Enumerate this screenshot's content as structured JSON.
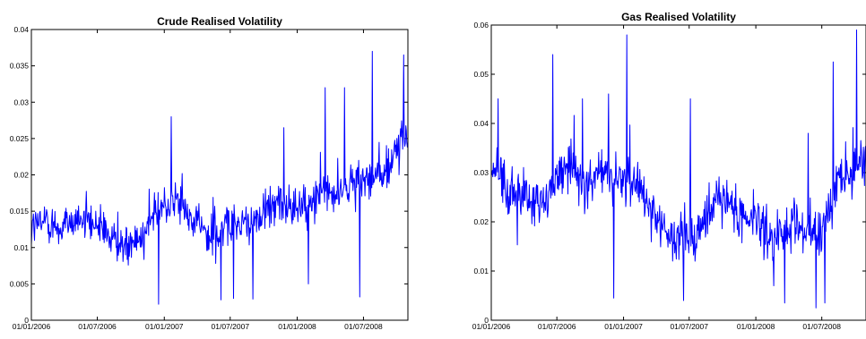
{
  "colors": {
    "series": "#0000ff",
    "axis": "#000000",
    "background": "#ffffff"
  },
  "chart_data": [
    {
      "type": "line",
      "title": "Crude Realised Volatility",
      "xlabel": "",
      "ylabel": "",
      "ylim": [
        0,
        0.04
      ],
      "yticks": [
        "0",
        "0.005",
        "0.01",
        "0.015",
        "0.02",
        "0.025",
        "0.03",
        "0.035",
        "0.04"
      ],
      "ytick_values": [
        0,
        0.005,
        0.01,
        0.015,
        0.02,
        0.025,
        0.03,
        0.035,
        0.04
      ],
      "xlim": [
        "01/01/2006",
        "31/10/2008"
      ],
      "xticks": [
        "01/01/2006",
        "01/07/2006",
        "01/01/2007",
        "01/07/2007",
        "01/01/2008",
        "01/07/2008"
      ],
      "grid": false,
      "legend": "none",
      "series": [
        {
          "values": [
            {
              "x": "2006-01-15",
              "y": 0.013
            },
            {
              "x": "2006-02-15",
              "y": 0.014
            },
            {
              "x": "2006-03-15",
              "y": 0.0125
            },
            {
              "x": "2006-04-15",
              "y": 0.0135
            },
            {
              "x": "2006-05-15",
              "y": 0.014
            },
            {
              "x": "2006-06-15",
              "y": 0.013
            },
            {
              "x": "2006-07-15",
              "y": 0.0125
            },
            {
              "x": "2006-08-15",
              "y": 0.011
            },
            {
              "x": "2006-09-15",
              "y": 0.0105
            },
            {
              "x": "2006-10-15",
              "y": 0.0115
            },
            {
              "x": "2006-11-15",
              "y": 0.0125
            },
            {
              "x": "2006-12-15",
              "y": 0.015
            },
            {
              "x": "2007-01-15",
              "y": 0.0165
            },
            {
              "x": "2007-02-15",
              "y": 0.016
            },
            {
              "x": "2007-03-15",
              "y": 0.014
            },
            {
              "x": "2007-04-15",
              "y": 0.0125
            },
            {
              "x": "2007-05-15",
              "y": 0.012
            },
            {
              "x": "2007-06-15",
              "y": 0.013
            },
            {
              "x": "2007-07-15",
              "y": 0.0125
            },
            {
              "x": "2007-08-15",
              "y": 0.0135
            },
            {
              "x": "2007-09-15",
              "y": 0.014
            },
            {
              "x": "2007-10-15",
              "y": 0.0145
            },
            {
              "x": "2007-11-15",
              "y": 0.016
            },
            {
              "x": "2007-12-15",
              "y": 0.0155
            },
            {
              "x": "2008-01-15",
              "y": 0.016
            },
            {
              "x": "2008-02-15",
              "y": 0.0165
            },
            {
              "x": "2008-03-15",
              "y": 0.018
            },
            {
              "x": "2008-04-15",
              "y": 0.0175
            },
            {
              "x": "2008-05-15",
              "y": 0.0185
            },
            {
              "x": "2008-06-15",
              "y": 0.019
            },
            {
              "x": "2008-07-15",
              "y": 0.0195
            },
            {
              "x": "2008-08-15",
              "y": 0.02
            },
            {
              "x": "2008-09-15",
              "y": 0.0215
            },
            {
              "x": "2008-10-15",
              "y": 0.025
            }
          ],
          "events": [
            {
              "x": "2006-12-17",
              "y": 0.0022
            },
            {
              "x": "2007-01-20",
              "y": 0.028
            },
            {
              "x": "2007-06-05",
              "y": 0.0028
            },
            {
              "x": "2007-07-10",
              "y": 0.003
            },
            {
              "x": "2007-09-01",
              "y": 0.0029
            },
            {
              "x": "2007-11-25",
              "y": 0.0265
            },
            {
              "x": "2008-02-01",
              "y": 0.005
            },
            {
              "x": "2008-03-18",
              "y": 0.032
            },
            {
              "x": "2008-05-10",
              "y": 0.032
            },
            {
              "x": "2008-06-20",
              "y": 0.0032
            },
            {
              "x": "2008-07-25",
              "y": 0.037
            },
            {
              "x": "2008-10-20",
              "y": 0.0365
            }
          ]
        }
      ]
    },
    {
      "type": "line",
      "title": "Gas Realised Volatility",
      "xlabel": "",
      "ylabel": "",
      "ylim": [
        0,
        0.06
      ],
      "yticks": [
        "0",
        "0.01",
        "0.02",
        "0.03",
        "0.04",
        "0.05",
        "0.06"
      ],
      "ytick_values": [
        0,
        0.01,
        0.02,
        0.03,
        0.04,
        0.05,
        0.06
      ],
      "xlim": [
        "01/01/2006",
        "31/10/2008"
      ],
      "xticks": [
        "01/01/2006",
        "01/07/2006",
        "01/01/2007",
        "01/07/2007",
        "01/01/2008",
        "01/07/2008"
      ],
      "grid": false,
      "legend": "none",
      "series": [
        {
          "values": [
            {
              "x": "2006-01-15",
              "y": 0.03
            },
            {
              "x": "2006-02-15",
              "y": 0.028
            },
            {
              "x": "2006-03-15",
              "y": 0.026
            },
            {
              "x": "2006-04-15",
              "y": 0.024
            },
            {
              "x": "2006-05-15",
              "y": 0.023
            },
            {
              "x": "2006-06-15",
              "y": 0.026
            },
            {
              "x": "2006-07-15",
              "y": 0.03
            },
            {
              "x": "2006-08-15",
              "y": 0.031
            },
            {
              "x": "2006-09-15",
              "y": 0.027
            },
            {
              "x": "2006-10-15",
              "y": 0.029
            },
            {
              "x": "2006-11-15",
              "y": 0.031
            },
            {
              "x": "2006-12-15",
              "y": 0.027
            },
            {
              "x": "2007-01-15",
              "y": 0.028
            },
            {
              "x": "2007-02-15",
              "y": 0.027
            },
            {
              "x": "2007-03-15",
              "y": 0.022
            },
            {
              "x": "2007-04-15",
              "y": 0.018
            },
            {
              "x": "2007-05-15",
              "y": 0.017
            },
            {
              "x": "2007-06-15",
              "y": 0.016
            },
            {
              "x": "2007-07-15",
              "y": 0.017
            },
            {
              "x": "2007-08-15",
              "y": 0.021
            },
            {
              "x": "2007-09-15",
              "y": 0.025
            },
            {
              "x": "2007-10-15",
              "y": 0.023
            },
            {
              "x": "2007-11-15",
              "y": 0.021
            },
            {
              "x": "2007-12-15",
              "y": 0.021
            },
            {
              "x": "2008-01-15",
              "y": 0.018
            },
            {
              "x": "2008-02-15",
              "y": 0.016
            },
            {
              "x": "2008-03-15",
              "y": 0.017
            },
            {
              "x": "2008-04-15",
              "y": 0.019
            },
            {
              "x": "2008-05-15",
              "y": 0.019
            },
            {
              "x": "2008-06-15",
              "y": 0.017
            },
            {
              "x": "2008-07-15",
              "y": 0.021
            },
            {
              "x": "2008-08-15",
              "y": 0.028
            },
            {
              "x": "2008-09-15",
              "y": 0.029
            },
            {
              "x": "2008-10-15",
              "y": 0.032
            }
          ],
          "events": [
            {
              "x": "2006-01-20",
              "y": 0.045
            },
            {
              "x": "2006-06-20",
              "y": 0.054
            },
            {
              "x": "2006-09-10",
              "y": 0.045
            },
            {
              "x": "2006-11-20",
              "y": 0.046
            },
            {
              "x": "2006-12-05",
              "y": 0.0045
            },
            {
              "x": "2007-01-10",
              "y": 0.058
            },
            {
              "x": "2007-06-15",
              "y": 0.004
            },
            {
              "x": "2007-07-05",
              "y": 0.045
            },
            {
              "x": "2008-02-20",
              "y": 0.007
            },
            {
              "x": "2008-03-20",
              "y": 0.0035
            },
            {
              "x": "2008-05-25",
              "y": 0.038
            },
            {
              "x": "2008-06-15",
              "y": 0.0025
            },
            {
              "x": "2008-07-10",
              "y": 0.0035
            },
            {
              "x": "2008-08-01",
              "y": 0.0525
            },
            {
              "x": "2008-10-05",
              "y": 0.059
            }
          ]
        }
      ]
    }
  ]
}
